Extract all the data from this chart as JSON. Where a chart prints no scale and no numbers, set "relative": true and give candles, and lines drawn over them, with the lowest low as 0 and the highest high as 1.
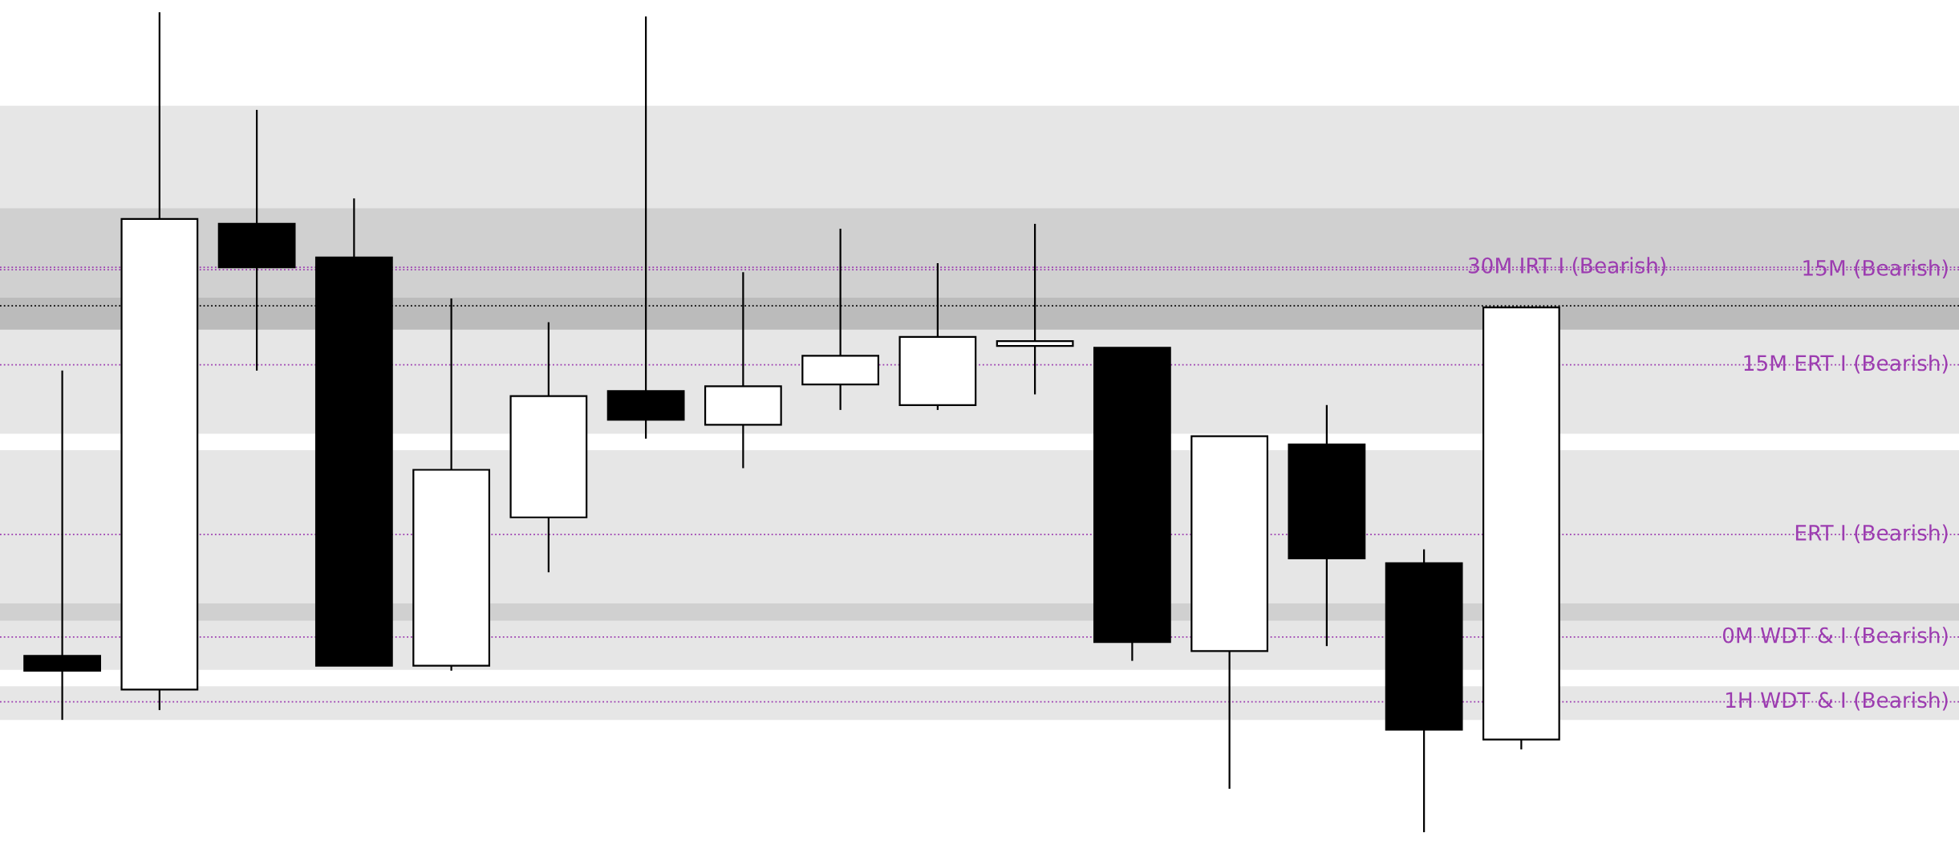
{
  "chart_data": {
    "type": "candlestick",
    "relative": true,
    "grid": false,
    "categories": [
      null,
      null,
      null,
      null,
      null,
      null,
      null,
      null,
      null,
      null,
      null,
      null,
      null,
      null,
      null,
      null
    ],
    "ohlc": [
      [
        0.215,
        0.563,
        0.137,
        0.197
      ],
      [
        0.174,
        1.0,
        0.149,
        0.748
      ],
      [
        0.742,
        0.881,
        0.563,
        0.689
      ],
      [
        0.701,
        0.773,
        0.203,
        0.203
      ],
      [
        0.203,
        0.651,
        0.197,
        0.442
      ],
      [
        0.384,
        0.622,
        0.317,
        0.532
      ],
      [
        0.538,
        0.995,
        0.48,
        0.503
      ],
      [
        0.497,
        0.683,
        0.444,
        0.544
      ],
      [
        0.546,
        0.736,
        0.515,
        0.581
      ],
      [
        0.521,
        0.694,
        0.515,
        0.604
      ],
      [
        0.593,
        0.742,
        0.534,
        0.599
      ],
      [
        0.591,
        0.591,
        0.209,
        0.232
      ],
      [
        0.221,
        0.483,
        0.053,
        0.483
      ],
      [
        0.473,
        0.521,
        0.227,
        0.334
      ],
      [
        0.328,
        0.345,
        0.0,
        0.125
      ],
      [
        0.113,
        0.64,
        0.101,
        0.64
      ]
    ],
    "colors": [
      "#000000",
      "#ffffff",
      "#000000",
      "#000000",
      "#ffffff",
      "#ffffff",
      "#000000",
      "#ffffff",
      "#ffffff",
      "#ffffff",
      "#ffffff",
      "#000000",
      "#ffffff",
      "#000000",
      "#000000",
      "#ffffff"
    ],
    "bands": [
      {
        "axis": "y",
        "from": 0.486,
        "to": 0.886,
        "label": null,
        "color": "#e6e6e6"
      },
      {
        "axis": "y",
        "from": 0.613,
        "to": 0.761,
        "label": null,
        "color": "#d0d0d0"
      },
      {
        "axis": "y",
        "from": 0.613,
        "to": 0.652,
        "label": null,
        "color": "#bbbbbb"
      },
      {
        "axis": "y",
        "from": 0.198,
        "to": 0.466,
        "label": null,
        "color": "#e6e6e6"
      },
      {
        "axis": "y",
        "from": 0.258,
        "to": 0.279,
        "label": null,
        "color": "#d0d0d0"
      },
      {
        "axis": "y",
        "from": 0.137,
        "to": 0.178,
        "label": null,
        "color": "#e6e6e6"
      }
    ],
    "ref_lines": [
      {
        "axis": "y",
        "value": 0.686,
        "label": "15M (Bearish)",
        "color": "#9c3cb0",
        "line_style": "dotted"
      },
      {
        "axis": "y",
        "value": 0.689,
        "label": "30M IRT I (Bearish)",
        "color": "#9c3cb0",
        "line_style": "dotted"
      },
      {
        "axis": "y",
        "value": 0.642,
        "label": null,
        "color": "#000000",
        "line_style": "dotted"
      },
      {
        "axis": "y",
        "value": 0.57,
        "label": "15M ERT I (Bearish)",
        "color": "#9c3cb0",
        "line_style": "dotted"
      },
      {
        "axis": "y",
        "value": 0.363,
        "label": "ERT I (Bearish)",
        "color": "#9c3cb0",
        "line_style": "dotted"
      },
      {
        "axis": "y",
        "value": 0.238,
        "label": "0M WDT & I (Bearish)",
        "color": "#9c3cb0",
        "line_style": "dotted"
      },
      {
        "axis": "y",
        "value": 0.159,
        "label": "1H WDT & I (Bearish)",
        "color": "#9c3cb0",
        "line_style": "dotted"
      }
    ]
  }
}
